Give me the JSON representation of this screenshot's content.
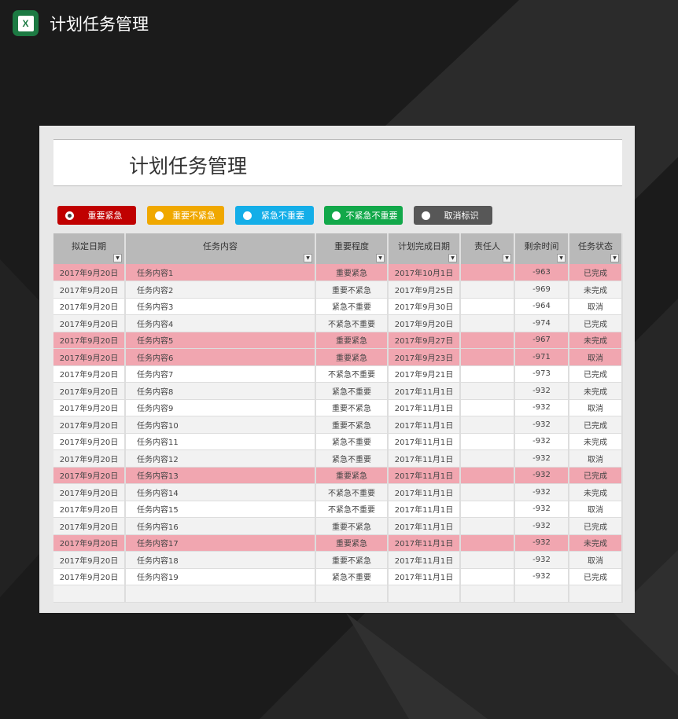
{
  "app": {
    "title": "计划任务管理",
    "icon": "excel-icon"
  },
  "sheet": {
    "title": "计划任务管理"
  },
  "legend": [
    {
      "label": "重要紧急",
      "color": "#c00000",
      "selected": true
    },
    {
      "label": "重要不紧急",
      "color": "#f0a800",
      "selected": false
    },
    {
      "label": "紧急不重要",
      "color": "#14aee8",
      "selected": false
    },
    {
      "label": "不紧急不重要",
      "color": "#12a84a",
      "selected": false
    },
    {
      "label": "取消标识",
      "color": "#575757",
      "selected": false
    }
  ],
  "highlight_color": "#f1a6b0",
  "columns": [
    "拟定日期",
    "任务内容",
    "重要程度",
    "计划完成日期",
    "责任人",
    "剩余时间",
    "任务状态"
  ],
  "rows": [
    [
      "2017年9月20日",
      "任务内容1",
      "重要紧急",
      "2017年10月1日",
      "",
      "-963",
      "已完成"
    ],
    [
      "2017年9月20日",
      "任务内容2",
      "重要不紧急",
      "2017年9月25日",
      "",
      "-969",
      "未完成"
    ],
    [
      "2017年9月20日",
      "任务内容3",
      "紧急不重要",
      "2017年9月30日",
      "",
      "-964",
      "取消"
    ],
    [
      "2017年9月20日",
      "任务内容4",
      "不紧急不重要",
      "2017年9月20日",
      "",
      "-974",
      "已完成"
    ],
    [
      "2017年9月20日",
      "任务内容5",
      "重要紧急",
      "2017年9月27日",
      "",
      "-967",
      "未完成"
    ],
    [
      "2017年9月20日",
      "任务内容6",
      "重要紧急",
      "2017年9月23日",
      "",
      "-971",
      "取消"
    ],
    [
      "2017年9月20日",
      "任务内容7",
      "不紧急不重要",
      "2017年9月21日",
      "",
      "-973",
      "已完成"
    ],
    [
      "2017年9月20日",
      "任务内容8",
      "紧急不重要",
      "2017年11月1日",
      "",
      "-932",
      "未完成"
    ],
    [
      "2017年9月20日",
      "任务内容9",
      "重要不紧急",
      "2017年11月1日",
      "",
      "-932",
      "取消"
    ],
    [
      "2017年9月20日",
      "任务内容10",
      "重要不紧急",
      "2017年11月1日",
      "",
      "-932",
      "已完成"
    ],
    [
      "2017年9月20日",
      "任务内容11",
      "紧急不重要",
      "2017年11月1日",
      "",
      "-932",
      "未完成"
    ],
    [
      "2017年9月20日",
      "任务内容12",
      "紧急不重要",
      "2017年11月1日",
      "",
      "-932",
      "取消"
    ],
    [
      "2017年9月20日",
      "任务内容13",
      "重要紧急",
      "2017年11月1日",
      "",
      "-932",
      "已完成"
    ],
    [
      "2017年9月20日",
      "任务内容14",
      "不紧急不重要",
      "2017年11月1日",
      "",
      "-932",
      "未完成"
    ],
    [
      "2017年9月20日",
      "任务内容15",
      "不紧急不重要",
      "2017年11月1日",
      "",
      "-932",
      "取消"
    ],
    [
      "2017年9月20日",
      "任务内容16",
      "重要不紧急",
      "2017年11月1日",
      "",
      "-932",
      "已完成"
    ],
    [
      "2017年9月20日",
      "任务内容17",
      "重要紧急",
      "2017年11月1日",
      "",
      "-932",
      "未完成"
    ],
    [
      "2017年9月20日",
      "任务内容18",
      "重要不紧急",
      "2017年11月1日",
      "",
      "-932",
      "取消"
    ],
    [
      "2017年9月20日",
      "任务内容19",
      "紧急不重要",
      "2017年11月1日",
      "",
      "-932",
      "已完成"
    ]
  ]
}
